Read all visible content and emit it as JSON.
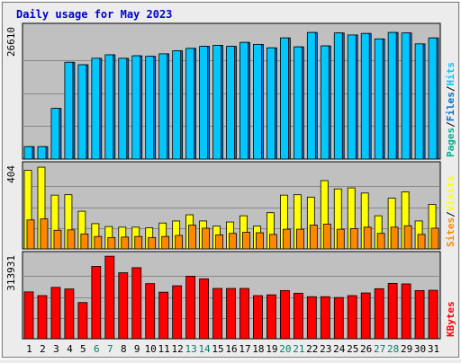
{
  "chart_data": {
    "type": "bar",
    "title": "Daily usage for May 2023",
    "categories": [
      "1",
      "2",
      "3",
      "4",
      "5",
      "6",
      "7",
      "8",
      "9",
      "10",
      "11",
      "12",
      "13",
      "14",
      "15",
      "16",
      "17",
      "18",
      "19",
      "20",
      "21",
      "22",
      "23",
      "24",
      "25",
      "26",
      "27",
      "28",
      "29",
      "30",
      "31"
    ],
    "weekend_days": [
      "6",
      "7",
      "13",
      "14",
      "20",
      "21",
      "27",
      "28"
    ],
    "panels": [
      {
        "id": "hits",
        "max_label": "26610",
        "ymax": 26610,
        "legend": [
          "Pages",
          "/",
          "Files",
          "/",
          "Hits"
        ],
        "series": [
          {
            "name": "Pages",
            "color": "#00b090",
            "values": [
              0,
              0,
              0,
              0,
              0,
              0,
              0,
              0,
              0,
              0,
              0,
              0,
              0,
              0,
              0,
              0,
              0,
              0,
              0,
              0,
              0,
              0,
              0,
              0,
              0,
              0,
              0,
              0,
              0,
              0,
              0
            ]
          },
          {
            "name": "Files",
            "color": "#0070d0",
            "values": [
              2500,
              2500,
              10200,
              19500,
              19000,
              20300,
              21000,
              20300,
              20800,
              20700,
              21200,
              21800,
              22300,
              22700,
              22900,
              22700,
              23500,
              23100,
              22400,
              24400,
              22600,
              25500,
              22800,
              25400,
              25000,
              25300,
              24200,
              25500,
              25400,
              23200,
              24400
            ]
          },
          {
            "name": "Hits",
            "color": "#00c8ff",
            "values": [
              2500,
              2500,
              10200,
              19500,
              19000,
              20300,
              21000,
              20300,
              20800,
              20700,
              21200,
              21800,
              22300,
              22700,
              22900,
              22700,
              23500,
              23100,
              22400,
              24400,
              22600,
              25500,
              22800,
              25400,
              25000,
              25300,
              24200,
              25500,
              25400,
              23200,
              24400
            ]
          }
        ]
      },
      {
        "id": "visits",
        "max_label": "404",
        "ymax": 404,
        "legend": [
          "Sites",
          "/",
          "Visits"
        ],
        "series": [
          {
            "name": "Visits",
            "color": "#ffff00",
            "values": [
              380,
              395,
              260,
              262,
              182,
              122,
              108,
              105,
              105,
              102,
              125,
              135,
              165,
              135,
              110,
              130,
              160,
              110,
              175,
              260,
              262,
              250,
              330,
              290,
              295,
              270,
              160,
              245,
              275,
              135,
              215
            ]
          },
          {
            "name": "Sites",
            "color": "#ff8800",
            "values": [
              140,
              145,
              90,
              92,
              72,
              60,
              55,
              57,
              60,
              55,
              60,
              65,
              115,
              100,
              68,
              75,
              80,
              78,
              70,
              95,
              95,
              115,
              120,
              95,
              98,
              105,
              75,
              105,
              112,
              70,
              100
            ]
          }
        ]
      },
      {
        "id": "kbytes",
        "max_label": "313931",
        "ymax": 313931,
        "legend": [
          "KBytes"
        ],
        "series": [
          {
            "name": "KBytes",
            "color": "#ff0000",
            "values": [
              176000,
              162000,
              193000,
              187000,
              136000,
              272000,
              310000,
              248000,
              267000,
              207000,
              175000,
              199000,
              235000,
              225000,
              189000,
              189000,
              189000,
              162000,
              165000,
              181000,
              171000,
              158000,
              158000,
              155000,
              162000,
              172000,
              188000,
              208000,
              206000,
              181000,
              182000
            ]
          }
        ]
      }
    ],
    "colors": {
      "title": "#0000cc",
      "plot_bg": "#c0c0c0",
      "frame_bg": "#ececec",
      "gridline": "#888888",
      "weekend_label": "#00806a",
      "weekday_label": "#000000"
    }
  }
}
